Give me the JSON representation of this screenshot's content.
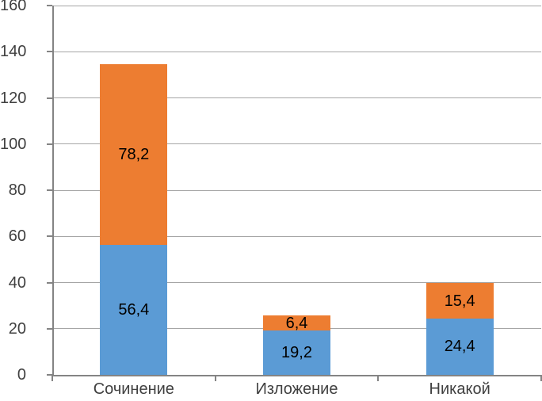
{
  "chart_data": {
    "type": "bar",
    "variant": "stacked-column",
    "title": "",
    "categories": [
      "Сочинение",
      "Изложение",
      "Никакой"
    ],
    "series": [
      {
        "name": "bottom-series",
        "color": "#5B9BD5",
        "values": [
          56.4,
          19.2,
          24.4
        ],
        "labels": [
          "56,4",
          "19,2",
          "24,4"
        ]
      },
      {
        "name": "top-series",
        "color": "#ED7D31",
        "values": [
          78.2,
          6.4,
          15.4
        ],
        "labels": [
          "78,2",
          "6,4",
          "15,4"
        ]
      }
    ],
    "totals": [
      134.6,
      25.6,
      39.8
    ],
    "xlabel": "",
    "ylabel": "",
    "ylim": [
      0,
      160
    ],
    "ytick_interval": 20,
    "ytick_labels": [
      "0",
      "20",
      "40",
      "60",
      "80",
      "100",
      "120",
      "140",
      "160"
    ],
    "grid": true,
    "legend": "none",
    "decimal_separator": ",",
    "colors": {
      "data_label": "#000000",
      "axis_label": "#404040",
      "gridline": "#a6a6a6",
      "axis_line": "#848484",
      "background": "#ffffff"
    }
  }
}
